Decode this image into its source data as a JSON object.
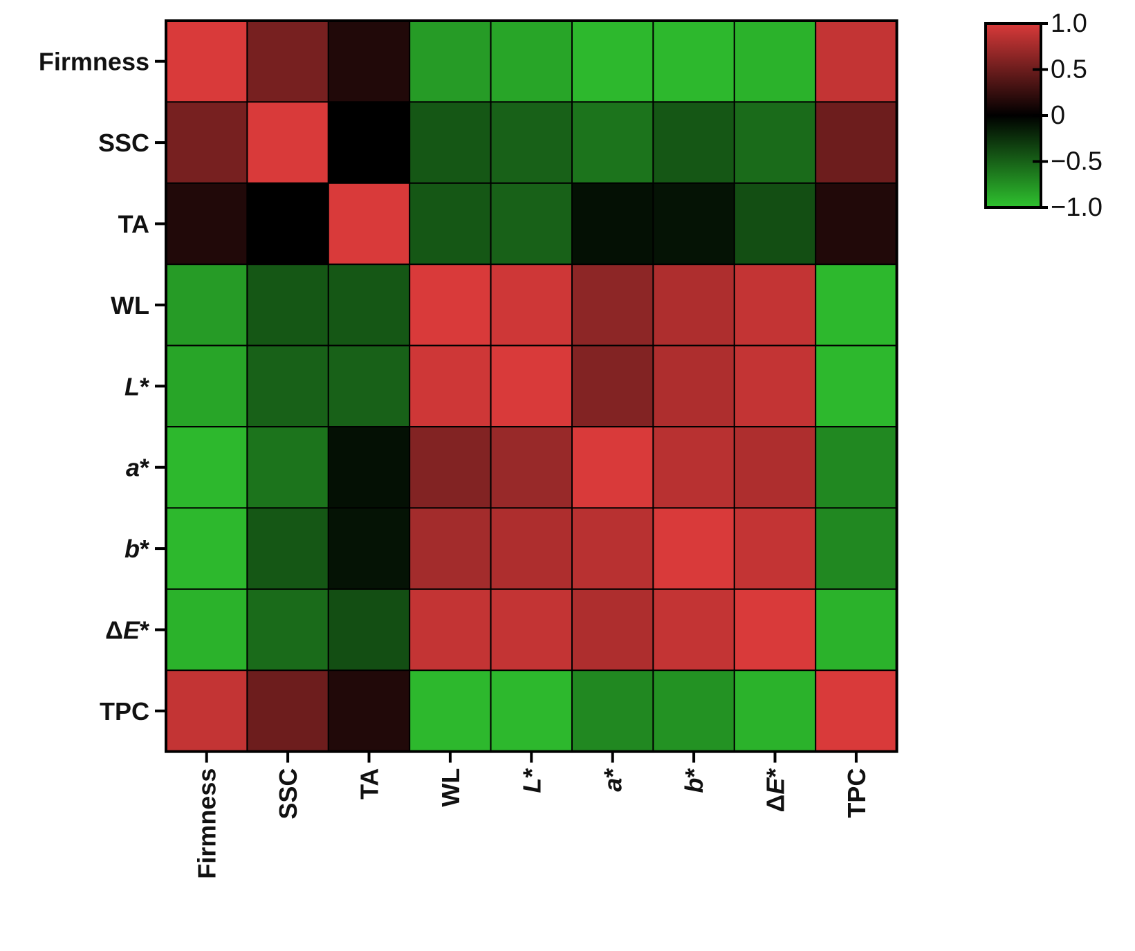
{
  "chart_data": {
    "type": "heatmap",
    "title": "",
    "xlabel": "",
    "ylabel": "",
    "variables": [
      {
        "base": "Firmness",
        "italic": false
      },
      {
        "base": "SSC",
        "italic": false
      },
      {
        "base": "TA",
        "italic": false
      },
      {
        "base": "WL",
        "italic": false
      },
      {
        "base": "L",
        "italic": true,
        "suffix": "*"
      },
      {
        "base": "a",
        "italic": true,
        "suffix": "*"
      },
      {
        "base": "b",
        "italic": true,
        "suffix": "*"
      },
      {
        "base": "E",
        "italic": true,
        "prefix": "Δ",
        "suffix": "*"
      },
      {
        "base": "TPC",
        "italic": false
      }
    ],
    "matrix": [
      [
        1.0,
        0.55,
        0.15,
        -0.8,
        -0.85,
        -0.95,
        -0.95,
        -0.92,
        0.9
      ],
      [
        0.55,
        1.0,
        0.0,
        -0.45,
        -0.5,
        -0.6,
        -0.45,
        -0.55,
        0.5
      ],
      [
        0.15,
        0.0,
        1.0,
        -0.45,
        -0.5,
        -0.08,
        -0.1,
        -0.4,
        0.15
      ],
      [
        -0.8,
        -0.45,
        -0.45,
        1.0,
        0.95,
        0.65,
        0.8,
        0.9,
        -0.95
      ],
      [
        -0.85,
        -0.5,
        -0.5,
        0.95,
        1.0,
        0.6,
        0.8,
        0.9,
        -0.95
      ],
      [
        -0.95,
        -0.6,
        -0.08,
        0.6,
        0.7,
        1.0,
        0.85,
        0.8,
        -0.7
      ],
      [
        -0.95,
        -0.45,
        -0.1,
        0.75,
        0.8,
        0.85,
        1.0,
        0.9,
        -0.7
      ],
      [
        -0.92,
        -0.55,
        -0.4,
        0.9,
        0.9,
        0.8,
        0.9,
        1.0,
        -0.92
      ],
      [
        0.9,
        0.5,
        0.15,
        -0.95,
        -0.95,
        -0.7,
        -0.75,
        -0.92,
        1.0
      ]
    ],
    "colorbar": {
      "min": -1.0,
      "max": 1.0,
      "ticks": [
        "1.0",
        "0.5",
        "0",
        "−0.5",
        "−1.0"
      ],
      "tick_values": [
        1.0,
        0.5,
        0.0,
        -0.5,
        -1.0
      ],
      "colors": {
        "high": "#d93a3a",
        "mid": "#000000",
        "low": "#2fc22f"
      },
      "placement": "top-right"
    },
    "legend": "none",
    "grid": true
  }
}
